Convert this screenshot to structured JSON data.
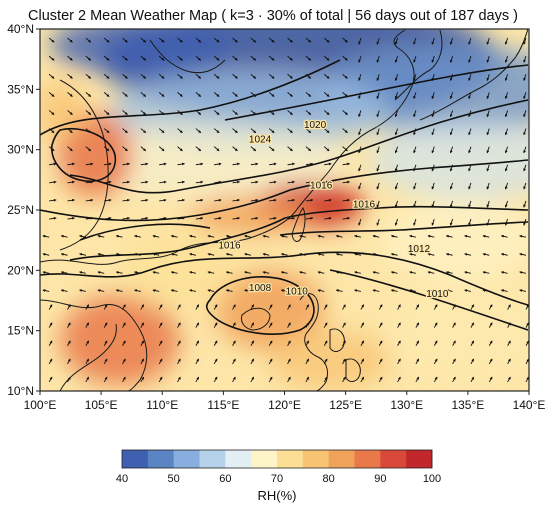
{
  "title": "Cluster 2 Mean Weather Map ( k=3 · 30% of total | 56 days out of 187 days )",
  "map": {
    "lon_range": [
      100,
      140
    ],
    "lat_range": [
      10,
      40
    ],
    "lon_ticks": [
      "100°E",
      "105°E",
      "110°E",
      "115°E",
      "120°E",
      "125°E",
      "130°E",
      "135°E",
      "140°E"
    ],
    "lat_ticks": [
      "10°N",
      "15°N",
      "20°N",
      "25°N",
      "30°N",
      "35°N",
      "40°N"
    ],
    "isobars": [
      {
        "label": "1024",
        "lon": 118.0,
        "lat": 30.6
      },
      {
        "label": "1020",
        "lon": 122.5,
        "lat": 31.8
      },
      {
        "label": "1016",
        "lon": 123.0,
        "lat": 26.8
      },
      {
        "label": "1016",
        "lon": 126.5,
        "lat": 25.2
      },
      {
        "label": "1012",
        "lon": 131.0,
        "lat": 21.5
      },
      {
        "label": "1010",
        "lon": 132.5,
        "lat": 17.8
      },
      {
        "label": "1008",
        "lon": 118.0,
        "lat": 18.3
      },
      {
        "label": "1010",
        "lon": 121.0,
        "lat": 18.0
      },
      {
        "label": "1016",
        "lon": 115.5,
        "lat": 21.8
      }
    ],
    "colors": {
      "ocean_base": "#fde6a8",
      "dry": "#2f4fa3",
      "moist": "#d03325",
      "land_line": "#1a1a1a"
    }
  },
  "colorbar": {
    "label": "RH(%)",
    "ticks": [
      "40",
      "50",
      "60",
      "70",
      "80",
      "90",
      "100"
    ],
    "colors": [
      "#3f5fb0",
      "#5b84c4",
      "#87aede",
      "#b6d2ea",
      "#e3eff2",
      "#fdf4c8",
      "#fcdf94",
      "#f8c474",
      "#f0a15a",
      "#e9794b",
      "#d9493a",
      "#c2272b"
    ]
  }
}
